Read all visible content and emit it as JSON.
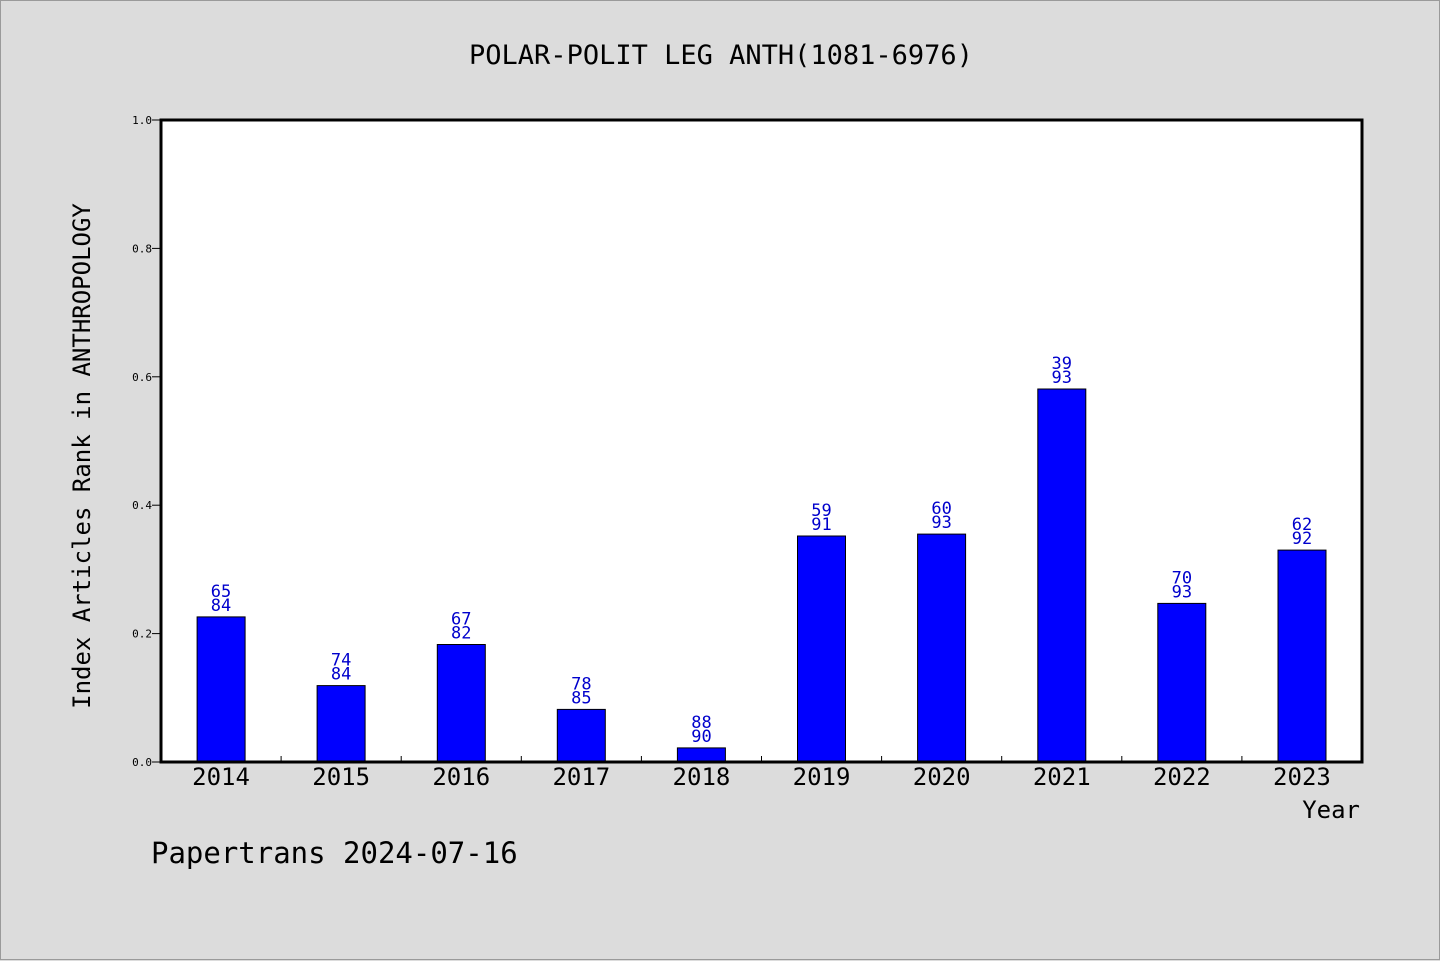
{
  "chart_data": {
    "type": "bar",
    "title": "POLAR-POLIT LEG ANTH(1081-6976)",
    "xlabel": "Year",
    "ylabel": "Index Articles Rank in ANTHROPOLOGY",
    "categories": [
      "2014",
      "2015",
      "2016",
      "2017",
      "2018",
      "2019",
      "2020",
      "2021",
      "2022",
      "2023"
    ],
    "series": [
      {
        "values": [
          0.226,
          0.119,
          0.183,
          0.082,
          0.022,
          0.352,
          0.355,
          0.581,
          0.247,
          0.33
        ],
        "ranks": [
          "65",
          "74",
          "67",
          "78",
          "88",
          "59",
          "60",
          "39",
          "70",
          "62"
        ],
        "totals": [
          "84",
          "84",
          "82",
          "85",
          "90",
          "91",
          "93",
          "93",
          "93",
          "92"
        ]
      }
    ],
    "ylim": [
      0,
      1.0
    ],
    "yticks": [
      "0.0",
      "0.2",
      "0.4",
      "0.6",
      "0.8",
      "1.0"
    ],
    "grid": false,
    "bar_color": "#0000ff",
    "label_color": "#0000cc"
  },
  "footer": "Papertrans 2024-07-16"
}
